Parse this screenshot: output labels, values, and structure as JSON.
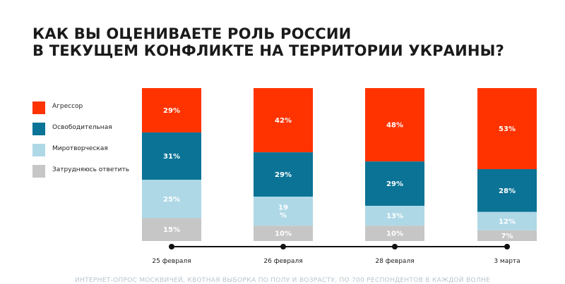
{
  "title_lines": [
    "КАК ВЫ ОЦЕНИВАЕТЕ РОЛЬ РОССИИ",
    "В ТЕКУЩЕМ КОНФЛИКТЕ НА ТЕРРИТОРИИ УКРАИНЫ?"
  ],
  "footer": "ИНТЕРНЕТ-ОПРОС МОСКВИЧЕЙ, КВОТНАЯ ВЫБОРКА ПО ПОЛУ И ВОЗРАСТУ, ПО 700 РЕСПОНДЕНТОВ В КАЖДОЙ ВОЛНЕ",
  "chart_data": {
    "type": "bar",
    "stacked": true,
    "percent_scale": true,
    "categories": [
      "25 февраля",
      "26 февраля",
      "28 февраля",
      "3 марта"
    ],
    "series": [
      {
        "name": "Агрессор",
        "color": "#ff3300",
        "values": [
          29,
          42,
          48,
          53
        ],
        "labels": [
          "29%",
          "42%",
          "48%",
          "53%"
        ]
      },
      {
        "name": "Освободительная",
        "color": "#0a7396",
        "values": [
          31,
          29,
          29,
          28
        ],
        "labels": [
          "31%",
          "29%",
          "29%",
          "28%"
        ]
      },
      {
        "name": "Миротворческая",
        "color": "#aed8e6",
        "values": [
          25,
          19,
          13,
          12
        ],
        "labels": [
          "25%",
          "19\n%",
          "13%",
          "12%"
        ]
      },
      {
        "name": "Затрудняюсь ответить",
        "color": "#c6c6c6",
        "values": [
          15,
          10,
          10,
          7
        ],
        "labels": [
          "15%",
          "10%",
          "10%",
          "7%"
        ]
      }
    ],
    "legend_position": "left",
    "grid": false,
    "timeline_axis": true
  }
}
